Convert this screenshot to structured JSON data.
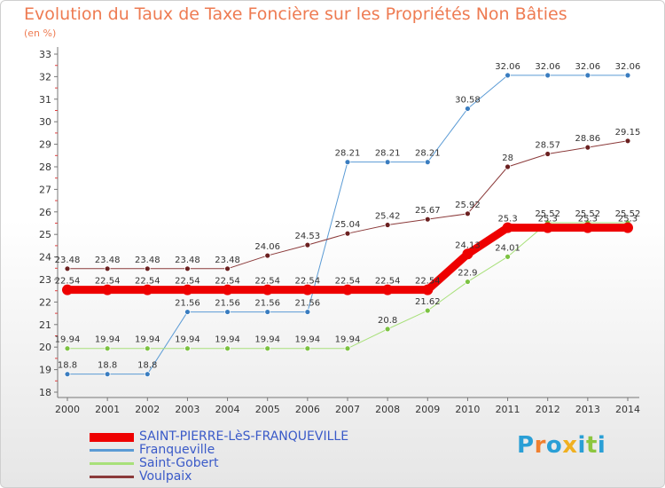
{
  "title": "Evolution du Taux de Taxe Foncière sur les Propriétés Non Bâties",
  "unit_label": "(en %)",
  "logo": {
    "text": "Proxiti",
    "letters": [
      "P",
      "r",
      "o",
      "x",
      "i",
      "t",
      "i"
    ],
    "colors": [
      "#2a9fd6",
      "#f08030",
      "#2a9fd6",
      "#f0b020",
      "#2a9fd6",
      "#8cc63f",
      "#2a9fd6"
    ]
  },
  "chart_data": {
    "type": "line",
    "title": "Evolution du Taux de Taxe Foncière sur les Propriétés Non Bâties",
    "ylabel": "(en %)",
    "xlabel": "",
    "ylim": [
      18,
      33
    ],
    "yticks": [
      18,
      19,
      20,
      21,
      22,
      23,
      24,
      25,
      26,
      27,
      28,
      29,
      30,
      31,
      32,
      33
    ],
    "x": [
      "2000",
      "2001",
      "2002",
      "2003",
      "2004",
      "2005",
      "2006",
      "2007",
      "2008",
      "2009",
      "2010",
      "2011",
      "2012",
      "2013",
      "2014"
    ],
    "grid": false,
    "legend_position": "bottom-left",
    "series": [
      {
        "name": "Franqueville",
        "color": "#5b9bd5",
        "marker": "#3a7dc0",
        "width": 1,
        "values": [
          18.8,
          18.8,
          18.8,
          21.56,
          21.56,
          21.56,
          21.56,
          28.21,
          28.21,
          28.21,
          30.58,
          32.06,
          32.06,
          32.06,
          32.06
        ],
        "labels": [
          "18.8",
          "18.8",
          "18.8",
          "21.56",
          "21.56",
          "21.56",
          "21.56",
          "28.21",
          "28.21",
          "28.21",
          "30.58",
          "32.06",
          "32.06",
          "32.06",
          "32.06"
        ]
      },
      {
        "name": "Saint-Gobert",
        "color": "#a8e07a",
        "marker": "#7cc242",
        "width": 1,
        "values": [
          19.94,
          19.94,
          19.94,
          19.94,
          19.94,
          19.94,
          19.94,
          19.94,
          20.8,
          21.62,
          22.9,
          24.01,
          25.52,
          25.52,
          25.52
        ],
        "labels": [
          "19.94",
          "19.94",
          "19.94",
          "19.94",
          "19.94",
          "19.94",
          "19.94",
          "19.94",
          "20.8",
          "21.62",
          "22.9",
          "24.01",
          "25.52",
          "25.52",
          "25.52"
        ]
      },
      {
        "name": "Voulpaix",
        "color": "#8b3a3a",
        "marker": "#6b2020",
        "width": 1,
        "values": [
          23.48,
          23.48,
          23.48,
          23.48,
          23.48,
          24.06,
          24.53,
          25.04,
          25.42,
          25.67,
          25.92,
          28,
          28.57,
          28.86,
          29.15
        ],
        "labels": [
          "23.48",
          "23.48",
          "23.48",
          "23.48",
          "23.48",
          "24.06",
          "24.53",
          "25.04",
          "25.42",
          "25.67",
          "25.92",
          "28",
          "28.57",
          "28.86",
          "29.15"
        ]
      },
      {
        "name": "SAINT-PIERRE-LèS-FRANQUEVILLE",
        "color": "#ee0000",
        "marker": "#ee0000",
        "width": 9,
        "values": [
          22.54,
          22.54,
          22.54,
          22.54,
          22.54,
          22.54,
          22.54,
          22.54,
          22.54,
          22.54,
          24.13,
          25.3,
          25.3,
          25.3,
          25.3
        ],
        "labels": [
          "22.54",
          "22.54",
          "22.54",
          "22.54",
          "22.54",
          "22.54",
          "22.54",
          "22.54",
          "22.54",
          "22.54",
          "24.13",
          "25.3",
          "25.3",
          "25.3",
          "25.3"
        ]
      }
    ],
    "legend": [
      {
        "name": "SAINT-PIERRE-LèS-FRANQUEVILLE",
        "color": "#ee0000",
        "thick": true
      },
      {
        "name": "Franqueville",
        "color": "#5b9bd5",
        "thick": false
      },
      {
        "name": "Saint-Gobert",
        "color": "#a8e07a",
        "thick": false
      },
      {
        "name": "Voulpaix",
        "color": "#8b3a3a",
        "thick": false
      }
    ]
  }
}
